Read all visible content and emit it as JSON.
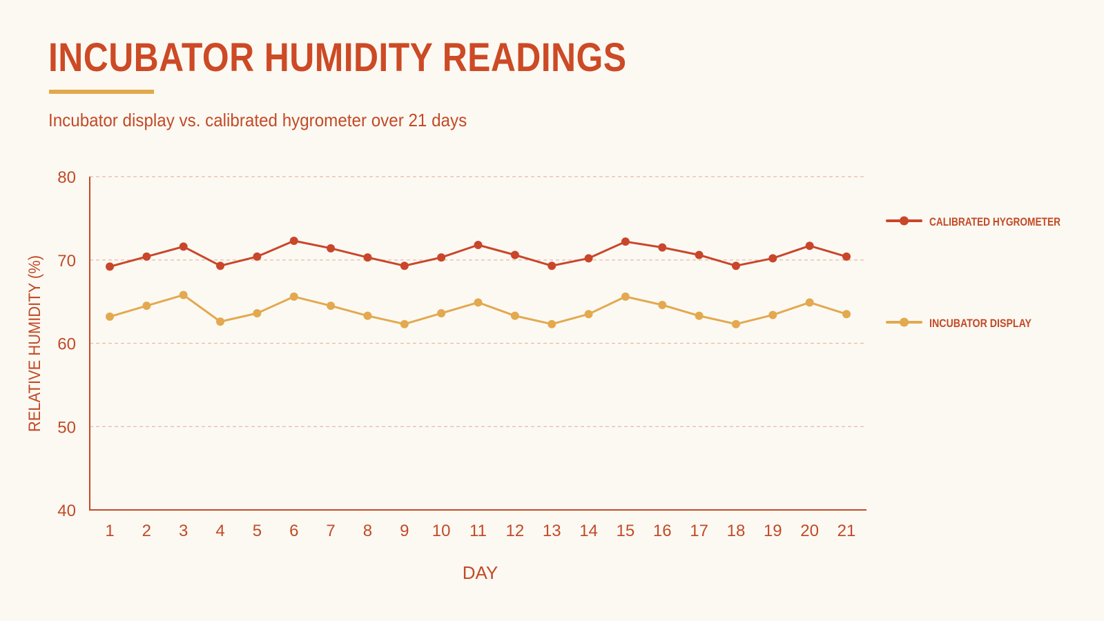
{
  "header": {
    "title": "INCUBATOR HUMIDITY READINGS",
    "subtitle": "Incubator display vs. calibrated hygrometer over 21 days"
  },
  "colors": {
    "hygrometer": "#c9462a",
    "display": "#e3a94f",
    "text": "#c24a26",
    "grid": "#e7b8a8",
    "axis": "#c24a26",
    "background": "#fcf9f3"
  },
  "chart_data": {
    "type": "line",
    "title": "INCUBATOR HUMIDITY READINGS",
    "subtitle": "Incubator display vs. calibrated hygrometer over 21 days",
    "xlabel": "DAY",
    "ylabel": "RELATIVE HUMIDITY (%)",
    "x": [
      1,
      2,
      3,
      4,
      5,
      6,
      7,
      8,
      9,
      10,
      11,
      12,
      13,
      14,
      15,
      16,
      17,
      18,
      19,
      20,
      21
    ],
    "ylim": [
      40,
      80
    ],
    "yticks": [
      40,
      50,
      60,
      70,
      80
    ],
    "grid": true,
    "legend_position": "right",
    "series": [
      {
        "name": "CALIBRATED HYGROMETER",
        "color": "#c9462a",
        "values": [
          69.2,
          70.4,
          71.6,
          69.3,
          70.4,
          72.3,
          71.4,
          70.3,
          69.3,
          70.3,
          71.8,
          70.6,
          69.3,
          70.2,
          72.2,
          71.5,
          70.6,
          69.3,
          70.2,
          71.7,
          70.4
        ]
      },
      {
        "name": "INCUBATOR DISPLAY",
        "color": "#e3a94f",
        "values": [
          63.2,
          64.5,
          65.8,
          62.6,
          63.6,
          65.6,
          64.5,
          63.3,
          62.3,
          63.6,
          64.9,
          63.3,
          62.3,
          63.5,
          65.6,
          64.6,
          63.3,
          62.3,
          63.4,
          64.9,
          63.5
        ]
      }
    ]
  }
}
